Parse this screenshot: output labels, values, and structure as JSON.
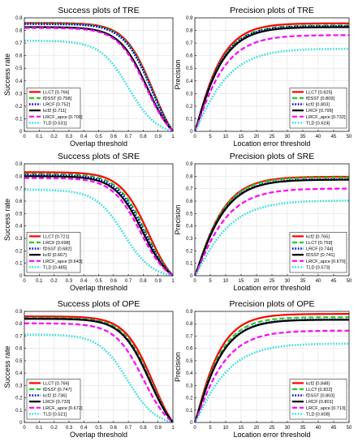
{
  "colors": {
    "LLCT": "#ff0000",
    "fDSST": "#22cc22",
    "LRCF": "#0000ee",
    "kcf2": "#000000",
    "LRCF_apce": "#ff00ff",
    "TLD": "#33dddd"
  },
  "styles": {
    "LLCT": "solid",
    "fDSST": "dashed",
    "LRCF": "dotted",
    "kcf2": "solid",
    "LRCF_apce": "dashed",
    "TLD": "dotted"
  },
  "chart_data": [
    {
      "type": "line",
      "kind": "success",
      "title": "Success plots of TRE",
      "xlabel": "Overlap threshold",
      "ylabel": "Success rate",
      "xlim": [
        0,
        1
      ],
      "ylim": [
        0,
        0.9
      ],
      "xticks": [
        "0",
        "0.1",
        "0.2",
        "0.3",
        "0.4",
        "0.5",
        "0.6",
        "0.7",
        "0.8",
        "0.9",
        "1"
      ],
      "yticks": [
        "0",
        "0.1",
        "0.2",
        "0.3",
        "0.4",
        "0.5",
        "0.6",
        "0.7",
        "0.8",
        "0.9"
      ],
      "legend_position": "bottom-left",
      "series": [
        {
          "key": "LLCT",
          "label": "LLCT [0.766]",
          "score": 0.766
        },
        {
          "key": "fDSST",
          "label": "fDSST [0.758]",
          "score": 0.758
        },
        {
          "key": "LRCF",
          "label": "LRCF [0.752]",
          "score": 0.752
        },
        {
          "key": "kcf2",
          "label": "kcf2 [0.711]",
          "score": 0.711
        },
        {
          "key": "LRCF_apce",
          "label": "LRCF_apce [0.700]",
          "score": 0.7
        },
        {
          "key": "TLD",
          "label": "TLD [0.531]",
          "score": 0.531
        }
      ]
    },
    {
      "type": "line",
      "kind": "precision",
      "title": "Precision plots of TRE",
      "xlabel": "Location error threshold",
      "ylabel": "Precision",
      "xlim": [
        0,
        50
      ],
      "ylim": [
        0,
        0.9
      ],
      "xticks": [
        "0",
        "5",
        "10",
        "15",
        "20",
        "25",
        "30",
        "35",
        "40",
        "45",
        "50"
      ],
      "yticks": [
        "0",
        "0.1",
        "0.2",
        "0.3",
        "0.4",
        "0.5",
        "0.6",
        "0.7",
        "0.8",
        "0.9"
      ],
      "legend_position": "bottom-right",
      "series": [
        {
          "key": "LLCT",
          "label": "LLCT [0.825]",
          "score": 0.825
        },
        {
          "key": "fDSST",
          "label": "fDSST [0.809]",
          "score": 0.809
        },
        {
          "key": "kcf2",
          "label": "kcf2 [0.803]",
          "score": 0.803,
          "style_key": "LRCF"
        },
        {
          "key": "LRCF",
          "label": "LRCF [0.795]",
          "score": 0.795,
          "style_key": "kcf2"
        },
        {
          "key": "LRCF_apce",
          "label": "LRCF_apce [0.732]",
          "score": 0.732
        },
        {
          "key": "TLD",
          "label": "TLD [0.624]",
          "score": 0.624
        }
      ]
    },
    {
      "type": "line",
      "kind": "success",
      "title": "Success plots of SRE",
      "xlabel": "Overlap threshold",
      "ylabel": "Success rate",
      "xlim": [
        0,
        1
      ],
      "ylim": [
        0,
        0.9
      ],
      "xticks": [
        "0",
        "0.1",
        "0.2",
        "0.3",
        "0.4",
        "0.5",
        "0.6",
        "0.7",
        "0.8",
        "0.9",
        "1"
      ],
      "yticks": [
        "0",
        "0.1",
        "0.2",
        "0.3",
        "0.4",
        "0.5",
        "0.6",
        "0.7",
        "0.8",
        "0.9"
      ],
      "legend_position": "bottom-left",
      "series": [
        {
          "key": "LLCT",
          "label": "LLCT [0.721]",
          "score": 0.721
        },
        {
          "key": "LRCF",
          "label": "LRCF [0.698]",
          "score": 0.698,
          "style_key": "fDSST"
        },
        {
          "key": "fDSST",
          "label": "fDSST [0.682]",
          "score": 0.682,
          "style_key": "LRCF"
        },
        {
          "key": "kcf2",
          "label": "kcf2 [0.667]",
          "score": 0.667
        },
        {
          "key": "LRCF_apce",
          "label": "LRCF_apce [0.643]",
          "score": 0.643
        },
        {
          "key": "TLD",
          "label": "TLD [0.485]",
          "score": 0.485
        }
      ]
    },
    {
      "type": "line",
      "kind": "precision",
      "title": "Precision plots of SRE",
      "xlabel": "Location error threshold",
      "ylabel": "Precision",
      "xlim": [
        0,
        50
      ],
      "ylim": [
        0,
        0.9
      ],
      "xticks": [
        "0",
        "5",
        "10",
        "15",
        "20",
        "25",
        "30",
        "35",
        "40",
        "45",
        "50"
      ],
      "yticks": [
        "0",
        "0.1",
        "0.2",
        "0.3",
        "0.4",
        "0.5",
        "0.6",
        "0.7",
        "0.8",
        "0.9"
      ],
      "legend_position": "bottom-right",
      "series": [
        {
          "key": "kcf2",
          "label": "kcf2 [0.765]",
          "score": 0.765,
          "style_key": "LLCT"
        },
        {
          "key": "LLCT",
          "label": "LLCT [0.759]",
          "score": 0.759,
          "style_key": "fDSST"
        },
        {
          "key": "LRCF",
          "label": "LRCF [0.744]",
          "score": 0.744
        },
        {
          "key": "fDSST",
          "label": "fDSST [0.741]",
          "score": 0.741,
          "style_key": "kcf2"
        },
        {
          "key": "LRCF_apce",
          "label": "LRCF_apce [0.670]",
          "score": 0.67
        },
        {
          "key": "TLD",
          "label": "TLD [0.573]",
          "score": 0.573
        }
      ]
    },
    {
      "type": "line",
      "kind": "success",
      "title": "Success plots of OPE",
      "xlabel": "Overlap threshold",
      "ylabel": "Success rate",
      "xlim": [
        0,
        1
      ],
      "ylim": [
        0,
        0.9
      ],
      "xticks": [
        "0",
        "0.1",
        "0.2",
        "0.3",
        "0.4",
        "0.5",
        "0.6",
        "0.7",
        "0.8",
        "0.9",
        "1"
      ],
      "yticks": [
        "0",
        "0.1",
        "0.2",
        "0.3",
        "0.4",
        "0.5",
        "0.6",
        "0.7",
        "0.8",
        "0.9"
      ],
      "legend_position": "bottom-left",
      "series": [
        {
          "key": "LLCT",
          "label": "LLCT [0.766]",
          "score": 0.766
        },
        {
          "key": "fDSST",
          "label": "fDSST [0.747]",
          "score": 0.747
        },
        {
          "key": "kcf2",
          "label": "kcf2 [0.736]",
          "score": 0.736,
          "style_key": "LRCF"
        },
        {
          "key": "LRCF",
          "label": "LRCF [0.733]",
          "score": 0.733,
          "style_key": "kcf2"
        },
        {
          "key": "LRCF_apce",
          "label": "LRCF_apce [0.672]",
          "score": 0.672
        },
        {
          "key": "TLD",
          "label": "TLD [0.521]",
          "score": 0.521
        }
      ]
    },
    {
      "type": "line",
      "kind": "precision",
      "title": "Precision plots of OPE",
      "xlabel": "Location error threshold",
      "ylabel": "Precision",
      "xlim": [
        0,
        50
      ],
      "ylim": [
        0,
        0.9
      ],
      "xticks": [
        "0",
        "5",
        "10",
        "15",
        "20",
        "25",
        "30",
        "35",
        "40",
        "45",
        "50"
      ],
      "yticks": [
        "0",
        "0.1",
        "0.2",
        "0.3",
        "0.4",
        "0.5",
        "0.6",
        "0.7",
        "0.8",
        "0.9"
      ],
      "legend_position": "bottom-right",
      "series": [
        {
          "key": "kcf2",
          "label": "kcf2 [0.848]",
          "score": 0.848,
          "style_key": "LLCT"
        },
        {
          "key": "LLCT",
          "label": "LLCT [0.822]",
          "score": 0.822,
          "style_key": "fDSST"
        },
        {
          "key": "fDSST",
          "label": "fDSST [0.803]",
          "score": 0.803,
          "style_key": "LRCF"
        },
        {
          "key": "LRCF",
          "label": "LRCF [0.801]",
          "score": 0.801,
          "style_key": "kcf2"
        },
        {
          "key": "LRCF_apce",
          "label": "LRCF_apce [0.713]",
          "score": 0.713
        },
        {
          "key": "TLD",
          "label": "TLD [0.608]",
          "score": 0.608
        }
      ]
    }
  ]
}
